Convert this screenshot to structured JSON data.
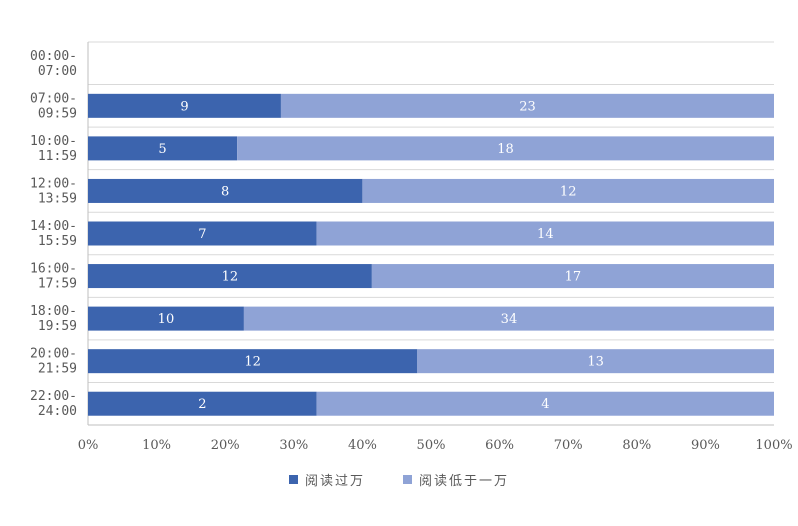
{
  "chart_data": {
    "type": "bar",
    "orientation": "horizontal",
    "stacked": "percent",
    "categories": [
      [
        "00:00-",
        "07:00"
      ],
      [
        "07:00-",
        "09:59"
      ],
      [
        "10:00-",
        "11:59"
      ],
      [
        "12:00-",
        "13:59"
      ],
      [
        "14:00-",
        "15:59"
      ],
      [
        "16:00-",
        "17:59"
      ],
      [
        "18:00-",
        "19:59"
      ],
      [
        "20:00-",
        "21:59"
      ],
      [
        "22:00-",
        "24:00"
      ]
    ],
    "series": [
      {
        "name": "阅读过万",
        "color": "#3c64ae",
        "values": [
          0,
          9,
          5,
          8,
          7,
          12,
          10,
          12,
          2
        ]
      },
      {
        "name": "阅读低于一万",
        "color": "#8fa3d6",
        "values": [
          0,
          23,
          18,
          12,
          14,
          17,
          34,
          13,
          4
        ]
      }
    ],
    "x_ticks": [
      "0%",
      "10%",
      "20%",
      "30%",
      "40%",
      "50%",
      "60%",
      "70%",
      "80%",
      "90%",
      "100%"
    ],
    "xlim": [
      0,
      100
    ],
    "gridlines": "horizontal",
    "legend_position": "bottom",
    "data_labels": true,
    "title": "",
    "xlabel": "",
    "ylabel": ""
  }
}
